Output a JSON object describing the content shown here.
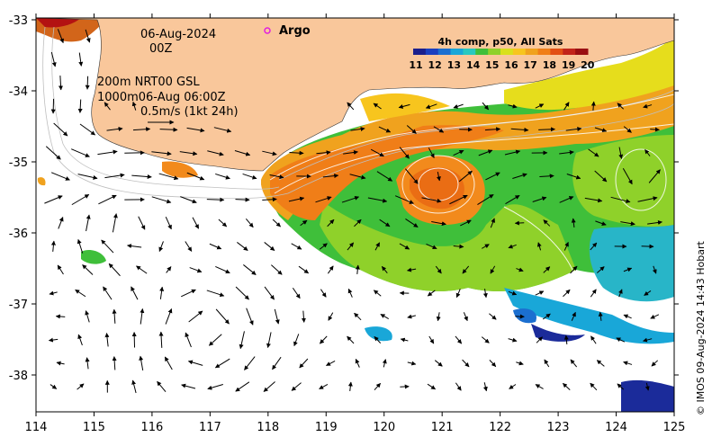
{
  "map": {
    "date": "06-Aug-2024",
    "hour": "00Z",
    "depth_line_1": "200m  NRT00 GSL",
    "depth_line_2": "1000m06-Aug 06:00Z",
    "velocity_scale": "0.5m/s (1kt 24h)",
    "argo_label": "Argo",
    "colorbar_title": "4h comp, p50, All Sats",
    "colorbar_ticks": [
      "11",
      "12",
      "13",
      "14",
      "15",
      "16",
      "17",
      "18",
      "19",
      "20"
    ],
    "credit": "© IMOS 09-Aug-2024 14:43 Hobart",
    "lon_ticks": [
      "114",
      "115",
      "116",
      "117",
      "118",
      "119",
      "120",
      "121",
      "122",
      "123",
      "124",
      "125"
    ],
    "lat_ticks": [
      "-33",
      "-34",
      "-35",
      "-36",
      "-37",
      "-38"
    ],
    "colors": {
      "land": "#f9c79b",
      "ocean_none": "#ffffff",
      "warm": "#f28a1c",
      "mid": "#f7d11e",
      "green": "#3fbf3a",
      "cool": "#19a7d8",
      "cold": "#1b2b9a",
      "argo": "#e01ee0"
    }
  }
}
